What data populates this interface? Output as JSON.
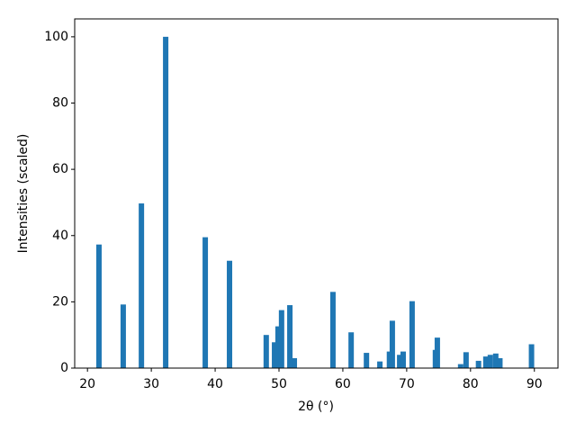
{
  "chart_data": {
    "type": "bar",
    "xlabel": "2θ (°)",
    "ylabel": "Intensities (scaled)",
    "color": "#1f77b4",
    "x": [
      21.8,
      25.6,
      28.45,
      32.25,
      38.45,
      42.25,
      48.0,
      49.3,
      49.85,
      50.4,
      51.7,
      52.4,
      58.45,
      61.3,
      63.7,
      65.8,
      67.3,
      67.75,
      68.9,
      69.45,
      70.85,
      74.5,
      74.8,
      78.45,
      79.3,
      81.25,
      82.4,
      83.1,
      83.95,
      84.6,
      89.55
    ],
    "values": [
      37.3,
      19.2,
      49.7,
      100,
      39.5,
      32.4,
      10,
      7.8,
      12.6,
      17.5,
      19,
      3,
      23,
      10.8,
      4.6,
      2,
      5,
      14.3,
      4,
      5,
      20.2,
      5.5,
      9.2,
      1.2,
      4.8,
      2.2,
      3.5,
      4,
      4.4,
      3,
      7.2
    ],
    "xlim": [
      18.0,
      93.7
    ],
    "ylim": [
      0,
      105.4
    ],
    "xticks": [
      20,
      30,
      40,
      50,
      60,
      70,
      80,
      90
    ],
    "yticks": [
      0,
      20,
      40,
      60,
      80,
      100
    ]
  }
}
